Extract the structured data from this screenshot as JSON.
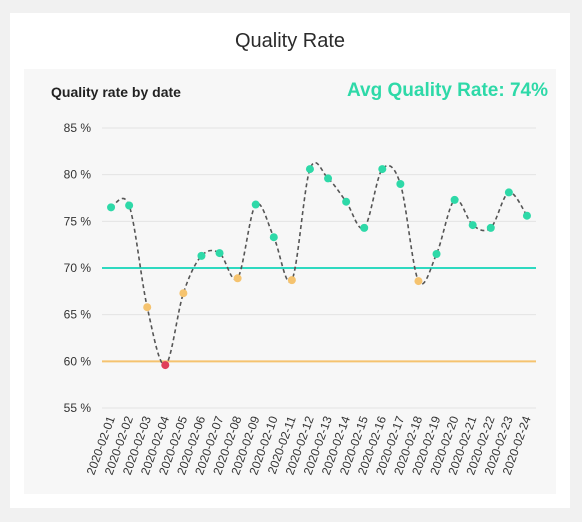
{
  "card_title": "Quality Rate",
  "panel_title": "Quality rate by date",
  "avg_label": "Avg Quality Rate: 74%",
  "colors": {
    "good": "#2ed9a8",
    "warning": "#f5c36f",
    "bad": "#e0405a",
    "line": "#555555",
    "upper_threshold": "#2ed9c0",
    "lower_threshold": "#f5c36f"
  },
  "chart_data": {
    "type": "line",
    "title": "Quality rate by date",
    "xlabel": "",
    "ylabel": "",
    "ylim": [
      55,
      85
    ],
    "yticks": [
      55,
      60,
      65,
      70,
      75,
      80,
      85
    ],
    "ytick_labels": [
      "55 %",
      "60 %",
      "65 %",
      "70 %",
      "75 %",
      "80 %",
      "85 %"
    ],
    "grid": true,
    "thresholds": [
      {
        "value": 70,
        "color": "#2ed9c0"
      },
      {
        "value": 60,
        "color": "#f5c36f"
      }
    ],
    "x": [
      "2020-02-01",
      "2020-02-02",
      "2020-02-03",
      "2020-02-04",
      "2020-02-05",
      "2020-02-06",
      "2020-02-07",
      "2020-02-08",
      "2020-02-09",
      "2020-02-10",
      "2020-02-11",
      "2020-02-12",
      "2020-02-13",
      "2020-02-14",
      "2020-02-15",
      "2020-02-16",
      "2020-02-17",
      "2020-02-18",
      "2020-02-19",
      "2020-02-20",
      "2020-02-21",
      "2020-02-22",
      "2020-02-23",
      "2020-02-24"
    ],
    "series": [
      {
        "values": [
          76.5,
          76.7,
          65.8,
          59.6,
          67.3,
          71.3,
          71.6,
          68.9,
          76.8,
          73.3,
          68.7,
          80.6,
          79.6,
          77.1,
          74.3,
          80.6,
          79.0,
          68.6,
          71.5,
          77.3,
          74.6,
          74.3,
          78.1,
          75.6
        ],
        "point_status": [
          "good",
          "good",
          "warning",
          "bad",
          "warning",
          "good",
          "good",
          "warning",
          "good",
          "good",
          "warning",
          "good",
          "good",
          "good",
          "good",
          "good",
          "good",
          "warning",
          "good",
          "good",
          "good",
          "good",
          "good",
          "good"
        ]
      }
    ]
  }
}
